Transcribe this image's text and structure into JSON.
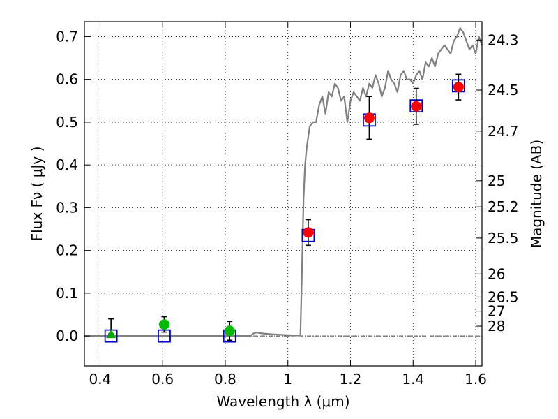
{
  "chart_data": {
    "type": "scatter",
    "xlabel": "Wavelength  λ (μm)",
    "ylabel": "Flux  Fν  ( μJy )",
    "y2label": "Magnitude (AB)",
    "xlim": [
      0.35,
      1.62
    ],
    "ylim": [
      -0.07,
      0.735
    ],
    "grid": true,
    "x_ticks": [
      {
        "value": 0.4,
        "label": "0.4"
      },
      {
        "value": 0.6,
        "label": "0.6"
      },
      {
        "value": 0.8,
        "label": "0.8"
      },
      {
        "value": 1.0,
        "label": "1"
      },
      {
        "value": 1.2,
        "label": "1.2"
      },
      {
        "value": 1.4,
        "label": "1.4"
      },
      {
        "value": 1.6,
        "label": "1.6"
      }
    ],
    "y_ticks": [
      {
        "value": 0.0,
        "label": "0.0"
      },
      {
        "value": 0.1,
        "label": "0.1"
      },
      {
        "value": 0.2,
        "label": "0.2"
      },
      {
        "value": 0.3,
        "label": "0.3"
      },
      {
        "value": 0.4,
        "label": "0.4"
      },
      {
        "value": 0.5,
        "label": "0.5"
      },
      {
        "value": 0.6,
        "label": "0.6"
      },
      {
        "value": 0.7,
        "label": "0.7"
      }
    ],
    "y2_ticks": [
      {
        "flux": 0.692,
        "label": "24.3"
      },
      {
        "flux": 0.575,
        "label": "24.5"
      },
      {
        "flux": 0.479,
        "label": "24.7"
      },
      {
        "flux": 0.363,
        "label": "25"
      },
      {
        "flux": 0.302,
        "label": "25.2"
      },
      {
        "flux": 0.229,
        "label": "25.5"
      },
      {
        "flux": 0.145,
        "label": "26"
      },
      {
        "flux": 0.091,
        "label": "26.5"
      },
      {
        "flux": 0.058,
        "label": "27"
      },
      {
        "flux": 0.023,
        "label": "28"
      }
    ],
    "series": [
      {
        "type": "line",
        "color": "#808080",
        "x": [
          0.35,
          0.88,
          0.89,
          0.9,
          0.92,
          0.95,
          1.0,
          1.04,
          1.045,
          1.05,
          1.055,
          1.06,
          1.07,
          1.08,
          1.09,
          1.1,
          1.11,
          1.12,
          1.13,
          1.14,
          1.15,
          1.16,
          1.17,
          1.18,
          1.19,
          1.2,
          1.21,
          1.22,
          1.23,
          1.24,
          1.25,
          1.26,
          1.27,
          1.28,
          1.29,
          1.3,
          1.31,
          1.32,
          1.33,
          1.34,
          1.35,
          1.36,
          1.37,
          1.38,
          1.39,
          1.4,
          1.41,
          1.42,
          1.43,
          1.44,
          1.45,
          1.46,
          1.47,
          1.48,
          1.49,
          1.5,
          1.51,
          1.52,
          1.53,
          1.54,
          1.55,
          1.56,
          1.57,
          1.58,
          1.59,
          1.6,
          1.61,
          1.62
        ],
        "y": [
          0.0,
          0.0,
          0.006,
          0.008,
          0.006,
          0.004,
          0.002,
          0.001,
          0.15,
          0.32,
          0.4,
          0.44,
          0.49,
          0.5,
          0.5,
          0.54,
          0.56,
          0.52,
          0.57,
          0.56,
          0.59,
          0.58,
          0.55,
          0.56,
          0.5,
          0.55,
          0.57,
          0.56,
          0.55,
          0.58,
          0.56,
          0.59,
          0.58,
          0.61,
          0.59,
          0.56,
          0.58,
          0.62,
          0.6,
          0.59,
          0.57,
          0.61,
          0.62,
          0.6,
          0.6,
          0.59,
          0.61,
          0.62,
          0.6,
          0.64,
          0.63,
          0.65,
          0.63,
          0.66,
          0.67,
          0.68,
          0.67,
          0.66,
          0.69,
          0.7,
          0.72,
          0.71,
          0.69,
          0.67,
          0.68,
          0.66,
          0.7,
          0.68
        ]
      },
      {
        "type": "scatter",
        "marker": "square-open",
        "color": "#0000cc",
        "x": [
          0.435,
          0.605,
          0.814,
          1.065,
          1.26,
          1.41,
          1.545
        ],
        "y": [
          0.0,
          0.0,
          0.0,
          0.235,
          0.505,
          0.538,
          0.585
        ]
      },
      {
        "type": "scatter",
        "marker": "circle",
        "color": "#00bb00",
        "x": [
          0.605,
          0.814
        ],
        "y": [
          0.027,
          0.012
        ],
        "err": [
          0.018,
          0.022
        ]
      },
      {
        "type": "scatter",
        "marker": "triangle",
        "color": "#00aa00",
        "x": [
          0.435
        ],
        "y": [
          0.005
        ],
        "err_low": [
          0.0
        ],
        "err_high": [
          0.035
        ]
      },
      {
        "type": "scatter",
        "marker": "circle",
        "color": "#ff0000",
        "x": [
          1.065,
          1.26,
          1.41,
          1.545
        ],
        "y": [
          0.242,
          0.51,
          0.537,
          0.582
        ],
        "err": [
          0.03,
          0.05,
          0.042,
          0.03
        ]
      }
    ]
  }
}
